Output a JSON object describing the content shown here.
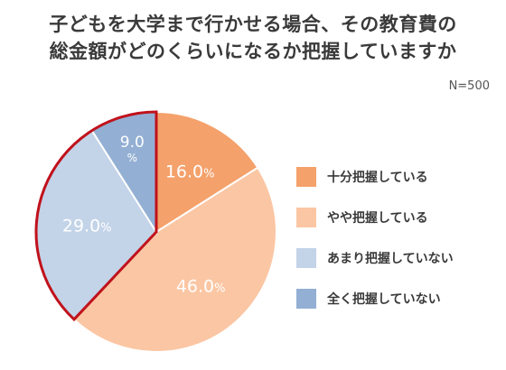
{
  "chart_data": {
    "type": "pie",
    "title_lines": [
      "子どもを大学まで行かせる場合、その教育費の",
      "総金額がどのくらいになるか把握していますか"
    ],
    "sample_size": "N=500",
    "unit": "%",
    "legend_position": "right",
    "highlight": "あまり把握していない + 全く把握していない",
    "slices": [
      {
        "name": "十分把握している",
        "value": 16.0,
        "label": "16.0",
        "color": "#f4a16b"
      },
      {
        "name": "やや把握している",
        "value": 46.0,
        "label": "46.0",
        "color": "#fbc6a3"
      },
      {
        "name": "あまり把握していない",
        "value": 29.0,
        "label": "29.0",
        "color": "#c3d3e8"
      },
      {
        "name": "全く把握していない",
        "value": 9.0,
        "label": "9.0",
        "color": "#93afd3"
      }
    ]
  }
}
